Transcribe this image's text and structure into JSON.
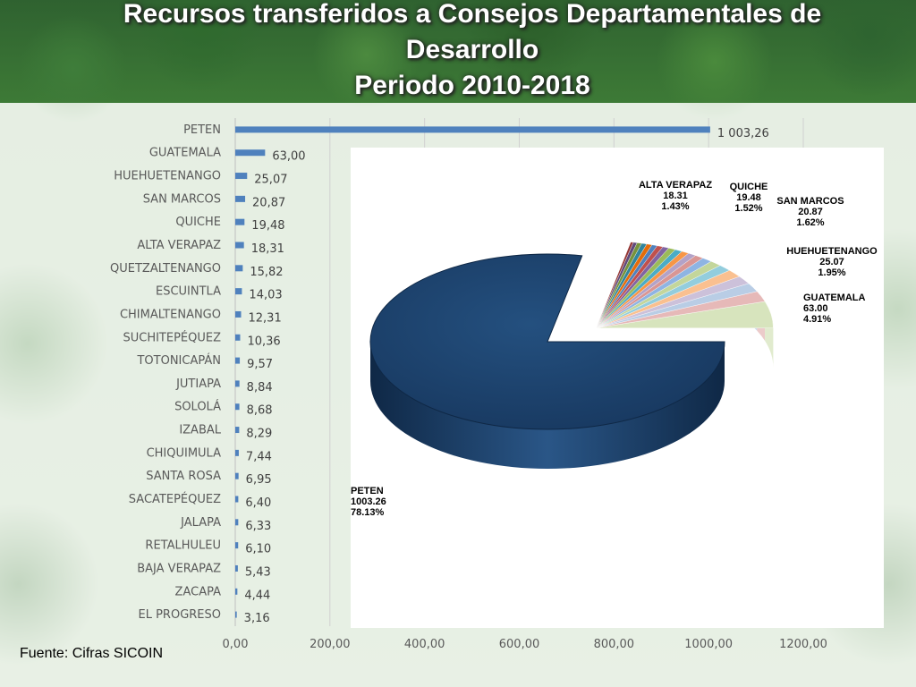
{
  "header": {
    "title_line1": "Recursos transferidos a Consejos Departamentales de",
    "title_line2": "Desarrollo",
    "title_line3": "Periodo 2010-2018"
  },
  "source": "Fuente: Cifras SICOIN",
  "colors": {
    "bar": "#4f81bd",
    "pie_main": "#17375e",
    "pie_second": "#d7e4bd"
  },
  "chart_data": [
    {
      "type": "bar",
      "orientation": "horizontal",
      "categories": [
        "PETEN",
        "GUATEMALA",
        "HUEHUETENANGO",
        "SAN MARCOS",
        "QUICHE",
        "ALTA VERAPAZ",
        "QUETZALTENANGO",
        "ESCUINTLA",
        "CHIMALTENANGO",
        "SUCHITEPÉQUEZ",
        "TOTONICAPÁN",
        "JUTIAPA",
        "SOLOLÁ",
        "IZABAL",
        "CHIQUIMULA",
        "SANTA ROSA",
        "SACATEPÉQUEZ",
        "JALAPA",
        "RETALHULEU",
        "BAJA VERAPAZ",
        "ZACAPA",
        "EL PROGRESO"
      ],
      "values": [
        1003.26,
        63.0,
        25.07,
        20.87,
        19.48,
        18.31,
        15.82,
        14.03,
        12.31,
        10.36,
        9.57,
        8.84,
        8.68,
        8.29,
        7.44,
        6.95,
        6.4,
        6.33,
        6.1,
        5.43,
        4.44,
        3.16
      ],
      "value_labels": [
        "1 003,26",
        "63,00",
        "25,07",
        "20,87",
        "19,48",
        "18,31",
        "15,82",
        "14,03",
        "12,31",
        "10,36",
        "9,57",
        "8,84",
        "8,68",
        "8,29",
        "7,44",
        "6,95",
        "6,40",
        "6,33",
        "6,10",
        "5,43",
        "4,44",
        "3,16"
      ],
      "x_ticks": [
        "0,00",
        "200,00",
        "400,00",
        "600,00",
        "800,00",
        "1000,00",
        "1200,00"
      ],
      "xlim": [
        0,
        1200
      ],
      "grid": true,
      "legend": "none"
    },
    {
      "type": "pie",
      "style": "3d-exploded",
      "labels": [
        {
          "name": "PETEN",
          "value": "1003.26",
          "percent": "78.13%"
        },
        {
          "name": "GUATEMALA",
          "value": "63.00",
          "percent": "4.91%"
        },
        {
          "name": "HUEHUETENANGO",
          "value": "25.07",
          "percent": "1.95%"
        },
        {
          "name": "SAN MARCOS",
          "value": "20.87",
          "percent": "1.62%"
        },
        {
          "name": "QUICHE",
          "value": "19.48",
          "percent": "1.52%"
        },
        {
          "name": "ALTA VERAPAZ",
          "value": "18.31",
          "percent": "1.43%"
        }
      ]
    }
  ]
}
